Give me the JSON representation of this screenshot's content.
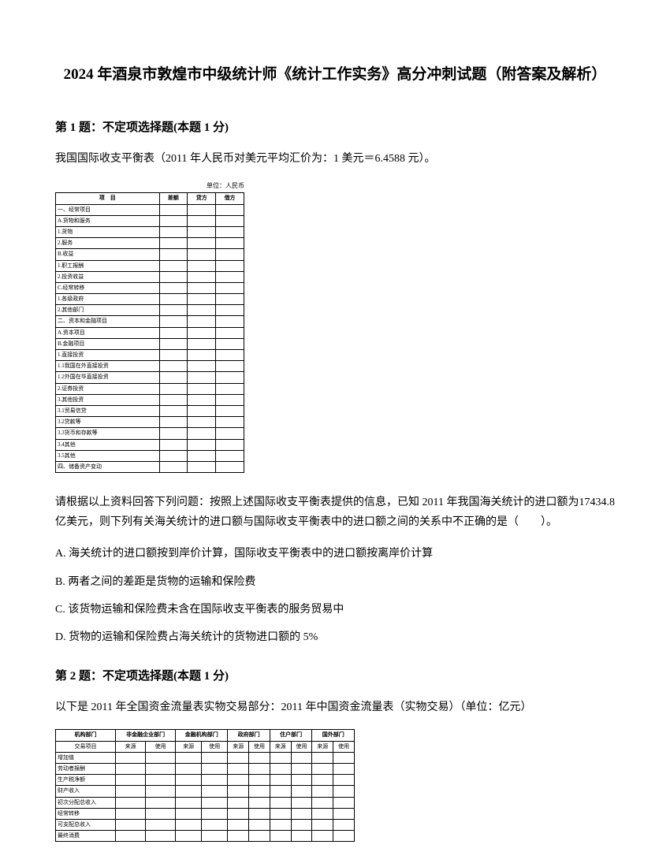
{
  "title": "2024 年酒泉市敦煌市中级统计师《统计工作实务》高分冲刺试题（附答案及解析）",
  "q1": {
    "header": "第 1 题：不定项选择题(本题 1 分)",
    "text": "我国国际收支平衡表（2011 年人民币对美元平均汇价为：1 美元＝6.4588 元）。",
    "unit": "单位：人民币",
    "followup": "请根据以上资料回答下列问题：按照上述国际收支平衡表提供的信息，已知 2011 年我国海关统计的进口额为17434.8 亿美元，则下列有关海关统计的进口额与国际收支平衡表中的进口额之间的关系中不正确的是（　　）。",
    "optA": "A. 海关统计的进口额按到岸价计算，国际收支平衡表中的进口额按离岸价计算",
    "optB": "B. 两者之间的差距是货物的运输和保险费",
    "optC": "C. 该货物运输和保险费未含在国际收支平衡表的服务贸易中",
    "optD": "D. 货物的运输和保险费占海关统计的货物进口额的 5%",
    "table": {
      "headers": [
        "项　目",
        "差额",
        "贷方",
        "借方"
      ],
      "rows": [
        [
          "一、经常项目",
          "",
          "",
          ""
        ],
        [
          "A.货物和服务",
          "",
          "",
          ""
        ],
        [
          "1.货物",
          "",
          "",
          ""
        ],
        [
          "2.服务",
          "",
          "",
          ""
        ],
        [
          "B.收益",
          "",
          "",
          ""
        ],
        [
          "1.职工报酬",
          "",
          "",
          ""
        ],
        [
          "2.投资收益",
          "",
          "",
          ""
        ],
        [
          "C.经常转移",
          "",
          "",
          ""
        ],
        [
          "1.各级政府",
          "",
          "",
          ""
        ],
        [
          "2.其他部门",
          "",
          "",
          ""
        ],
        [
          "二、资本和金融项目",
          "",
          "",
          ""
        ],
        [
          "A.资本项目",
          "",
          "",
          ""
        ],
        [
          "B.金融项目",
          "",
          "",
          ""
        ],
        [
          "1.直接投资",
          "",
          "",
          ""
        ],
        [
          "1.1我国在外直接投资",
          "",
          "",
          ""
        ],
        [
          "1.2外国在华直接投资",
          "",
          "",
          ""
        ],
        [
          "2.证券投资",
          "",
          "",
          ""
        ],
        [
          "3.其他投资",
          "",
          "",
          ""
        ],
        [
          "3.1贸易信贷",
          "",
          "",
          ""
        ],
        [
          "3.2贷款等",
          "",
          "",
          ""
        ],
        [
          "3.3货币和存款等",
          "",
          "",
          ""
        ],
        [
          "3.4其他",
          "",
          "",
          ""
        ],
        [
          "3.5其他",
          "",
          "",
          ""
        ],
        [
          "四、储备资产变动",
          "",
          "",
          ""
        ]
      ]
    }
  },
  "q2": {
    "header": "第 2 题：不定项选择题(本题 1 分)",
    "text": "以下是 2011 年全国资金流量表实物交易部分：2011 年中国资金流量表（实物交易）（单位：亿元）",
    "table": {
      "headers1": [
        "机构部门",
        "非金融企业部门",
        "金融机构部门",
        "政府部门",
        "住户部门",
        "国外部门"
      ],
      "headers2": [
        "交易项目",
        "来源",
        "使用",
        "来源",
        "使用",
        "来源",
        "使用",
        "来源",
        "使用",
        "来源",
        "使用"
      ],
      "rows": [
        [
          "增加值",
          "",
          "",
          "",
          "",
          "",
          "",
          "",
          "",
          "",
          ""
        ],
        [
          "劳动者报酬",
          "",
          "",
          "",
          "",
          "",
          "",
          "",
          "",
          "",
          ""
        ],
        [
          "生产税净额",
          "",
          "",
          "",
          "",
          "",
          "",
          "",
          "",
          "",
          ""
        ],
        [
          "财产收入",
          "",
          "",
          "",
          "",
          "",
          "",
          "",
          "",
          "",
          ""
        ],
        [
          "初次分配总收入",
          "",
          "",
          "",
          "",
          "",
          "",
          "",
          "",
          "",
          ""
        ],
        [
          "经常转移",
          "",
          "",
          "",
          "",
          "",
          "",
          "",
          "",
          "",
          ""
        ],
        [
          "可支配总收入",
          "",
          "",
          "",
          "",
          "",
          "",
          "",
          "",
          "",
          ""
        ],
        [
          "最终消费",
          "",
          "",
          "",
          "",
          "",
          "",
          "",
          "",
          "",
          ""
        ]
      ]
    }
  }
}
